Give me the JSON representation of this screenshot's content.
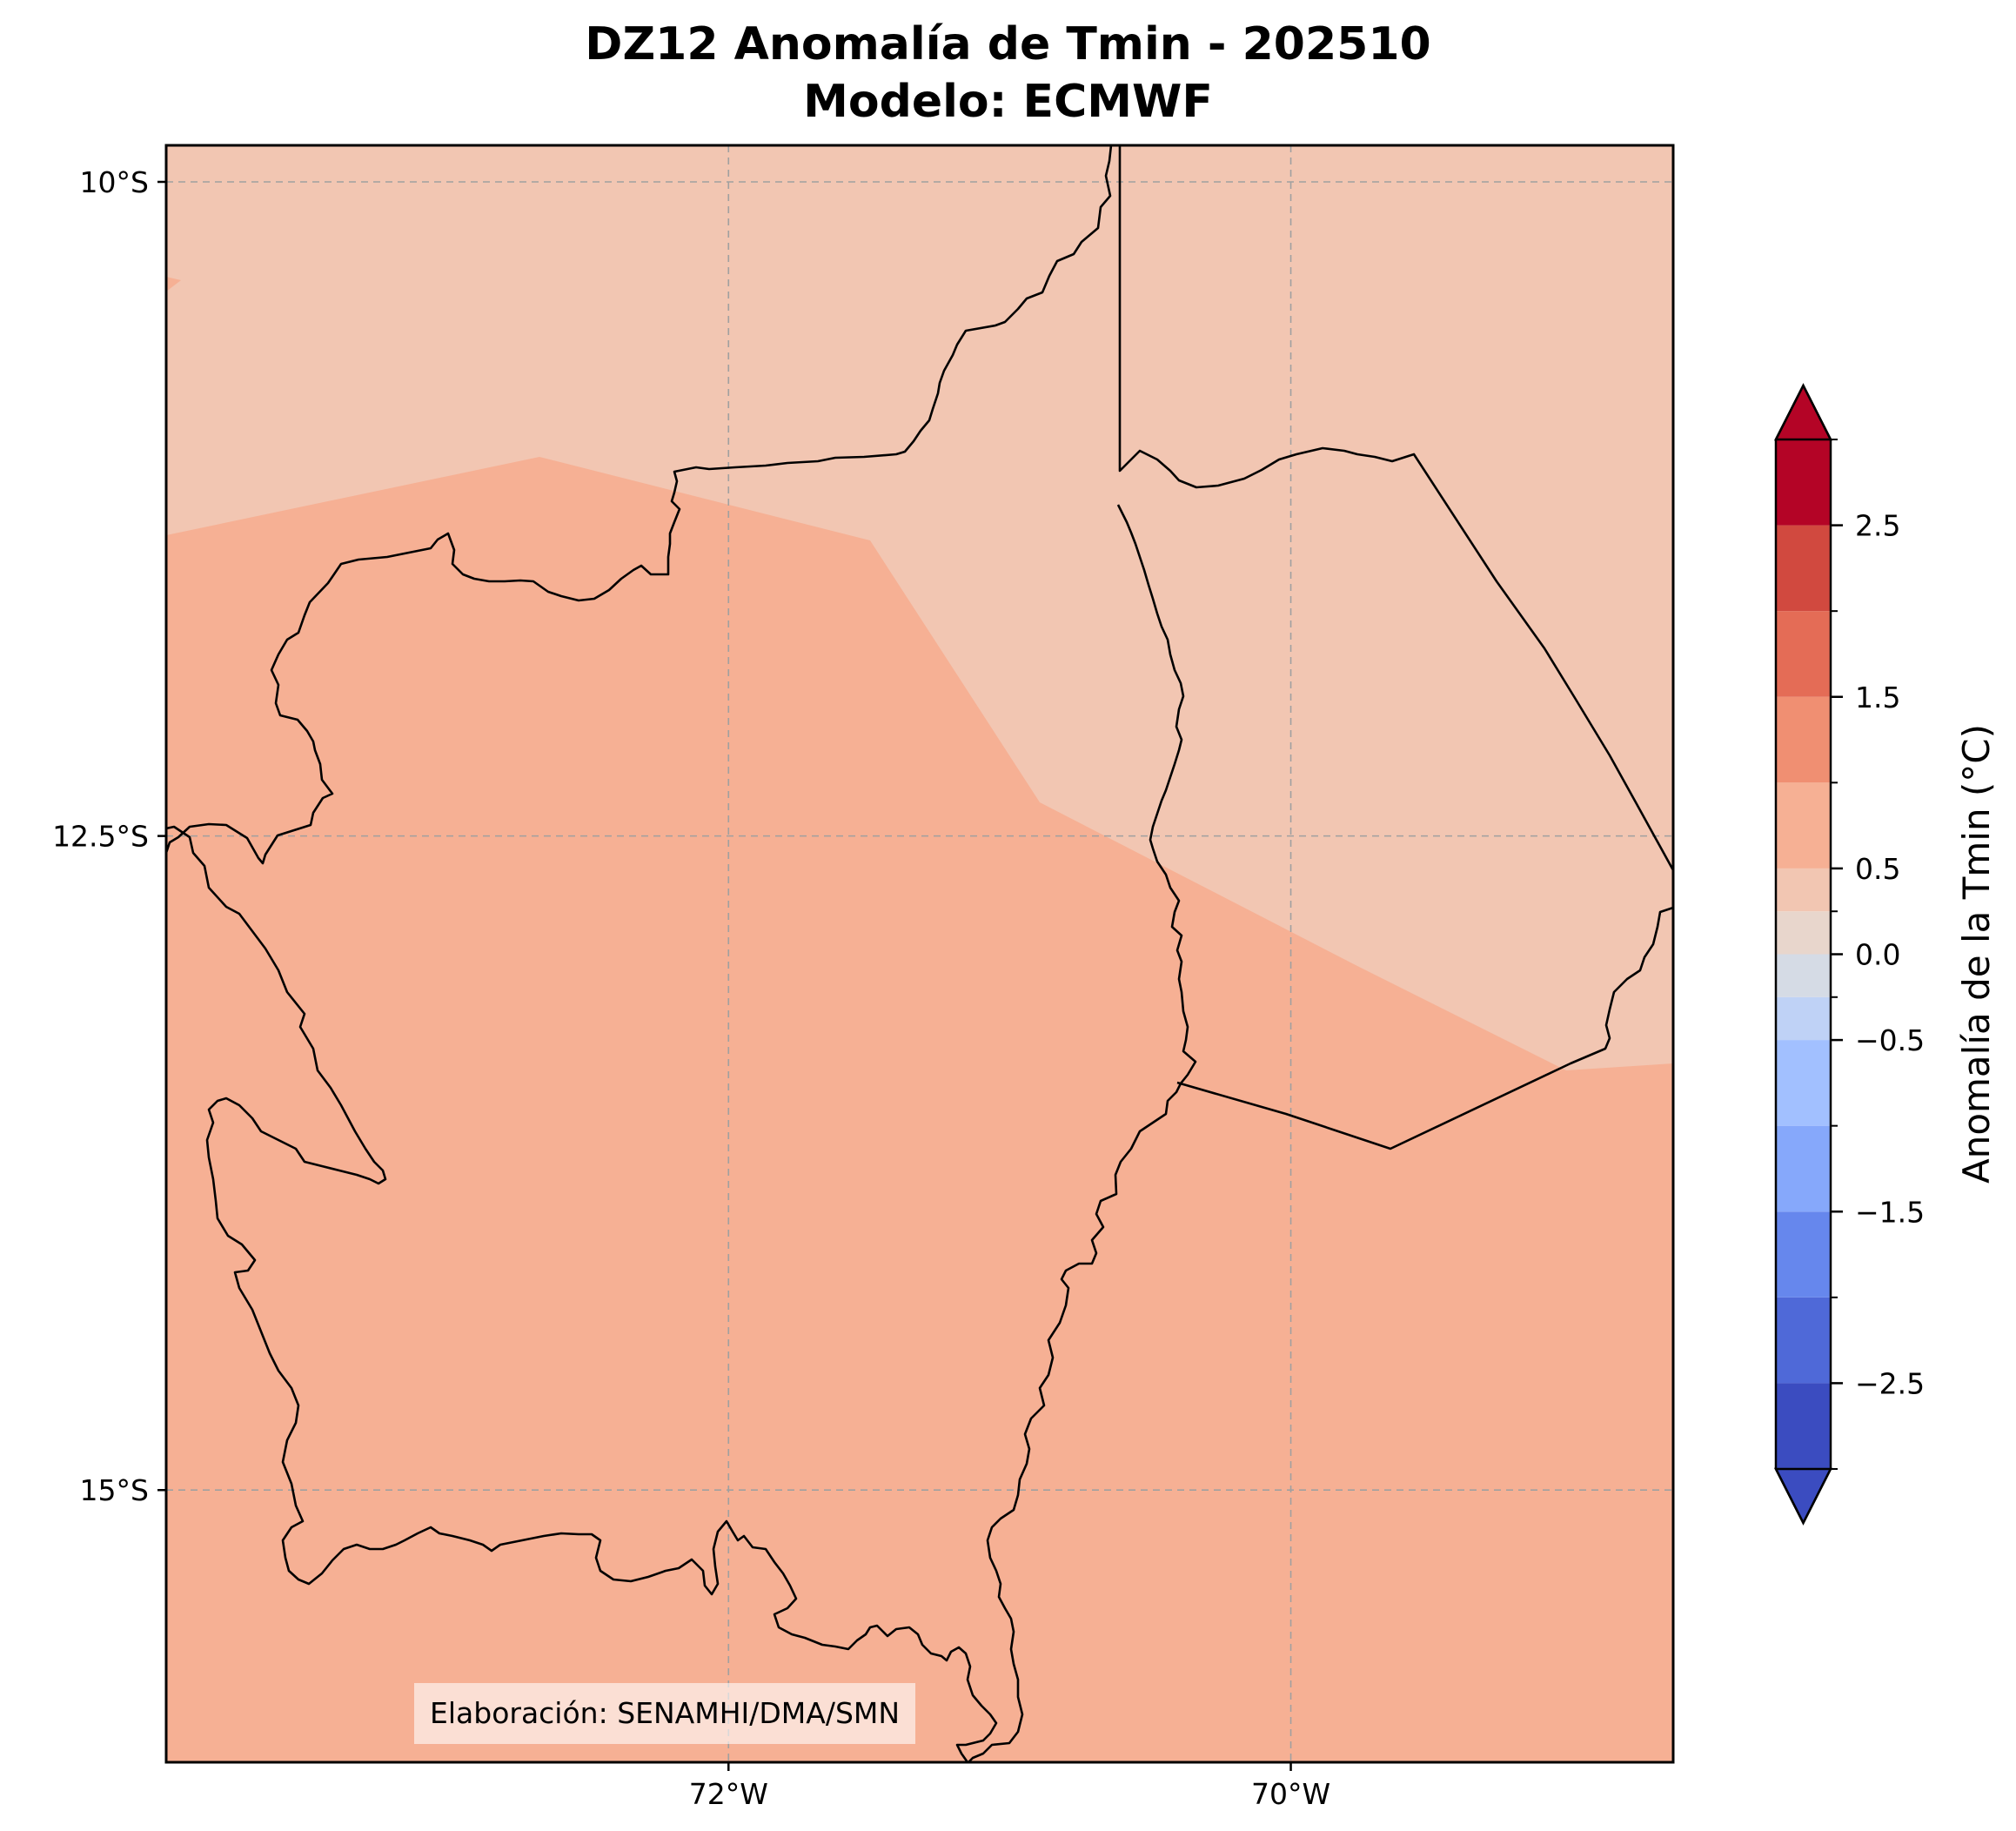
{
  "title": {
    "line1": "DZ12 Anomalía de Tmin - 202510",
    "line2": "Modelo: ECMWF"
  },
  "map": {
    "extent": {
      "lon": [
        -74.0,
        -68.64
      ],
      "lat": [
        -16.18,
        -10.0
      ]
    },
    "lat_ticks": [
      {
        "value": -10.0,
        "label": "10°S"
      },
      {
        "value": -12.5,
        "label": "12.5°S"
      },
      {
        "value": -15.0,
        "label": "15°S"
      }
    ],
    "lon_ticks": [
      {
        "value": -72.0,
        "label": "72°W"
      },
      {
        "value": -70.0,
        "label": "70°W"
      }
    ],
    "gridlines": true,
    "credit": "Elaboración: SENAMHI/DMA/SMN",
    "fill_colors": {
      "anomaly_0_5_to_1_0": "#f6b094",
      "anomaly_0_25_to_0_5": "#f2c6b2"
    }
  },
  "colorbar": {
    "label": "Anomalía de la Tmin (°C)",
    "extend": "both",
    "ticks": [
      {
        "value": 2.5,
        "label": "2.5"
      },
      {
        "value": 1.5,
        "label": "1.5"
      },
      {
        "value": 0.5,
        "label": "0.5"
      },
      {
        "value": 0.0,
        "label": "0.0"
      },
      {
        "value": -0.5,
        "label": "−0.5"
      },
      {
        "value": -1.5,
        "label": "−1.5"
      },
      {
        "value": -2.5,
        "label": "−2.5"
      }
    ],
    "levels": [
      {
        "from": -3.0,
        "to": -2.5,
        "color": "#3b4cc0"
      },
      {
        "from": -2.5,
        "to": -2.0,
        "color": "#4f69d8"
      },
      {
        "from": -2.0,
        "to": -1.5,
        "color": "#6687ed"
      },
      {
        "from": -1.5,
        "to": -1.0,
        "color": "#86a8fb"
      },
      {
        "from": -1.0,
        "to": -0.5,
        "color": "#a2c0ff"
      },
      {
        "from": -0.5,
        "to": -0.25,
        "color": "#bfd2f6"
      },
      {
        "from": -0.25,
        "to": 0.0,
        "color": "#d5dbe5"
      },
      {
        "from": 0.0,
        "to": 0.25,
        "color": "#e8d6cc"
      },
      {
        "from": 0.25,
        "to": 0.5,
        "color": "#f2c6b2"
      },
      {
        "from": 0.5,
        "to": 1.0,
        "color": "#f6b094"
      },
      {
        "from": 1.0,
        "to": 1.5,
        "color": "#f08f72"
      },
      {
        "from": 1.5,
        "to": 2.0,
        "color": "#e46c56"
      },
      {
        "from": 2.0,
        "to": 2.5,
        "color": "#d1493f"
      },
      {
        "from": 2.5,
        "to": 3.0,
        "color": "#b40426"
      }
    ],
    "under_color": "#3b4cc0",
    "over_color": "#b40426"
  }
}
